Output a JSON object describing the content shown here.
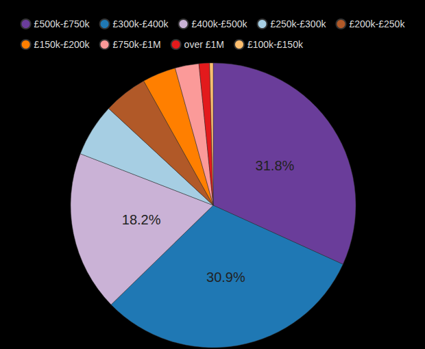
{
  "chart_data": {
    "type": "pie",
    "categories": [
      "£500k-£750k",
      "£300k-£400k",
      "£400k-£500k",
      "£250k-£300k",
      "£200k-£250k",
      "£150k-£200k",
      "£750k-£1M",
      "over £1M",
      "£100k-£150k"
    ],
    "values": [
      31.8,
      30.9,
      18.2,
      6.0,
      5.0,
      3.8,
      2.7,
      1.2,
      0.4
    ],
    "value_labels": [
      "31.8%",
      "30.9%",
      "18.2%",
      null,
      null,
      null,
      null,
      null,
      null
    ],
    "colors": [
      "#6a3d9a",
      "#1f78b4",
      "#cab2d6",
      "#a6cee3",
      "#b15928",
      "#ff7f00",
      "#fb9a99",
      "#e31a1c",
      "#fdbf6f"
    ],
    "data_labels": true,
    "legend": "top"
  }
}
